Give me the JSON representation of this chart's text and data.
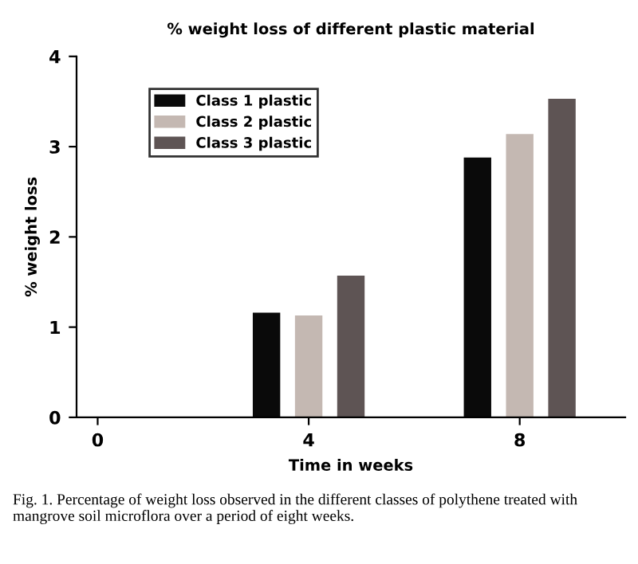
{
  "chart_data": {
    "type": "bar",
    "title": "% weight loss of different plastic material",
    "xlabel": "Time in weeks",
    "ylabel": "% weight loss",
    "categories": [
      "0",
      "4",
      "8"
    ],
    "series": [
      {
        "name": "Class 1 plastic",
        "color": "#0a0a0a",
        "values": [
          null,
          1.16,
          2.88
        ]
      },
      {
        "name": "Class 2 plastic",
        "color": "#c4b8b2",
        "values": [
          null,
          1.13,
          3.14
        ]
      },
      {
        "name": "Class 3 plastic",
        "color": "#5e5454",
        "values": [
          null,
          1.57,
          3.53
        ]
      }
    ],
    "ylim": [
      0,
      4
    ],
    "yticks": [
      0,
      1,
      2,
      3,
      4
    ],
    "grid": false,
    "legend": "top left",
    "annotations": [
      "Fig. 1. Percentage of weight loss observed in the different classes of polythene treated with mangrove soil microflora over a period of eight weeks."
    ]
  }
}
